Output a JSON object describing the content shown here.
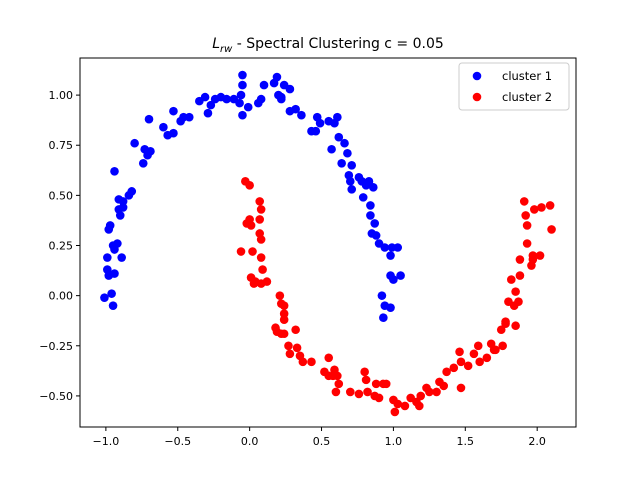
{
  "chart_data": {
    "type": "scatter",
    "title": {
      "math_symbol": "L",
      "math_subscript": "rw",
      "rest": " - Spectral Clustering c = 0.05"
    },
    "xlim": [
      -1.18,
      2.27
    ],
    "ylim": [
      -0.655,
      1.185
    ],
    "xticks": [
      -1.0,
      -0.5,
      0.0,
      0.5,
      1.0,
      1.5,
      2.0
    ],
    "xtick_labels": [
      "−1.0",
      "−0.5",
      "0.0",
      "0.5",
      "1.0",
      "1.5",
      "2.0"
    ],
    "yticks": [
      -0.5,
      -0.25,
      0.0,
      0.25,
      0.5,
      0.75,
      1.0
    ],
    "ytick_labels": [
      "−0.50",
      "−0.25",
      "0.00",
      "0.25",
      "0.50",
      "0.75",
      "1.00"
    ],
    "grid": false,
    "legend_position": "top-right",
    "series": [
      {
        "name": "cluster 1",
        "color": "#0000ff",
        "points": [
          [
            -1.01,
            -0.01
          ],
          [
            -0.96,
            0.01
          ],
          [
            -0.95,
            -0.05
          ],
          [
            -0.98,
            0.1
          ],
          [
            -0.99,
            0.13
          ],
          [
            -0.99,
            0.19
          ],
          [
            -0.94,
            0.11
          ],
          [
            -0.89,
            0.19
          ],
          [
            -0.95,
            0.25
          ],
          [
            -0.92,
            0.26
          ],
          [
            -0.94,
            0.23
          ],
          [
            -0.98,
            0.33
          ],
          [
            -0.97,
            0.35
          ],
          [
            -0.9,
            0.4
          ],
          [
            -0.91,
            0.43
          ],
          [
            -0.88,
            0.44
          ],
          [
            -0.88,
            0.47
          ],
          [
            -0.91,
            0.48
          ],
          [
            -0.84,
            0.5
          ],
          [
            -0.82,
            0.52
          ],
          [
            -0.94,
            0.62
          ],
          [
            -0.74,
            0.66
          ],
          [
            -0.71,
            0.7
          ],
          [
            -0.73,
            0.73
          ],
          [
            -0.69,
            0.72
          ],
          [
            -0.8,
            0.76
          ],
          [
            -0.7,
            0.88
          ],
          [
            -0.6,
            0.84
          ],
          [
            -0.57,
            0.8
          ],
          [
            -0.53,
            0.81
          ],
          [
            -0.53,
            0.92
          ],
          [
            -0.48,
            0.87
          ],
          [
            -0.46,
            0.89
          ],
          [
            -0.42,
            0.89
          ],
          [
            -0.35,
            0.97
          ],
          [
            -0.31,
            0.99
          ],
          [
            -0.29,
            0.91
          ],
          [
            -0.27,
            0.95
          ],
          [
            -0.24,
            0.98
          ],
          [
            -0.2,
            0.99
          ],
          [
            -0.16,
            0.98
          ],
          [
            -0.11,
            0.98
          ],
          [
            -0.07,
            0.96
          ],
          [
            -0.05,
            1.1
          ],
          [
            -0.05,
            1.05
          ],
          [
            -0.05,
            0.9
          ],
          [
            -0.06,
            1.0
          ],
          [
            -0.01,
            0.94
          ],
          [
            0.06,
            0.96
          ],
          [
            0.08,
            0.98
          ],
          [
            0.1,
            1.05
          ],
          [
            0.17,
            1.06
          ],
          [
            0.19,
            1.09
          ],
          [
            0.2,
            1.0
          ],
          [
            0.22,
            0.99
          ],
          [
            0.22,
            0.98
          ],
          [
            0.24,
            1.05
          ],
          [
            0.28,
            1.03
          ],
          [
            0.28,
            0.92
          ],
          [
            0.32,
            0.93
          ],
          [
            0.36,
            0.9
          ],
          [
            0.43,
            0.82
          ],
          [
            0.46,
            0.82
          ],
          [
            0.47,
            0.89
          ],
          [
            0.49,
            0.86
          ],
          [
            0.55,
            0.87
          ],
          [
            0.59,
            0.86
          ],
          [
            0.61,
            0.89
          ],
          [
            0.57,
            0.73
          ],
          [
            0.62,
            0.79
          ],
          [
            0.66,
            0.76
          ],
          [
            0.64,
            0.66
          ],
          [
            0.68,
            0.71
          ],
          [
            0.69,
            0.6
          ],
          [
            0.7,
            0.57
          ],
          [
            0.71,
            0.65
          ],
          [
            0.71,
            0.53
          ],
          [
            0.76,
            0.59
          ],
          [
            0.78,
            0.57
          ],
          [
            0.79,
            0.49
          ],
          [
            0.81,
            0.55
          ],
          [
            0.83,
            0.57
          ],
          [
            0.84,
            0.45
          ],
          [
            0.84,
            0.4
          ],
          [
            0.86,
            0.54
          ],
          [
            0.85,
            0.31
          ],
          [
            0.87,
            0.36
          ],
          [
            0.88,
            0.3
          ],
          [
            0.9,
            0.26
          ],
          [
            0.94,
            0.24
          ],
          [
            0.98,
            0.2
          ],
          [
            0.99,
            0.24
          ],
          [
            1.03,
            0.24
          ],
          [
            0.98,
            0.1
          ],
          [
            1.0,
            0.08
          ],
          [
            1.05,
            0.1
          ],
          [
            0.92,
            0.0
          ],
          [
            0.94,
            -0.05
          ],
          [
            0.98,
            -0.06
          ],
          [
            0.93,
            -0.11
          ]
        ]
      },
      {
        "name": "cluster 2",
        "color": "#ff0000",
        "points": [
          [
            -0.03,
            0.57
          ],
          [
            0.0,
            0.55
          ],
          [
            0.07,
            0.47
          ],
          [
            0.08,
            0.43
          ],
          [
            -0.02,
            0.36
          ],
          [
            0.0,
            0.38
          ],
          [
            0.01,
            0.35
          ],
          [
            0.07,
            0.38
          ],
          [
            0.07,
            0.31
          ],
          [
            0.08,
            0.28
          ],
          [
            -0.06,
            0.22
          ],
          [
            0.02,
            0.22
          ],
          [
            0.08,
            0.19
          ],
          [
            0.09,
            0.13
          ],
          [
            0.01,
            0.09
          ],
          [
            0.04,
            0.07
          ],
          [
            0.03,
            0.06
          ],
          [
            0.12,
            0.07
          ],
          [
            0.08,
            0.06
          ],
          [
            0.21,
            0.0
          ],
          [
            0.22,
            -0.04
          ],
          [
            0.24,
            -0.05
          ],
          [
            0.24,
            -0.09
          ],
          [
            0.24,
            -0.12
          ],
          [
            0.18,
            -0.16
          ],
          [
            0.19,
            -0.18
          ],
          [
            0.22,
            -0.19
          ],
          [
            0.24,
            -0.19
          ],
          [
            0.32,
            -0.17
          ],
          [
            0.27,
            -0.25
          ],
          [
            0.33,
            -0.26
          ],
          [
            0.28,
            -0.29
          ],
          [
            0.35,
            -0.3
          ],
          [
            0.37,
            -0.33
          ],
          [
            0.43,
            -0.33
          ],
          [
            0.55,
            -0.31
          ],
          [
            0.52,
            -0.38
          ],
          [
            0.55,
            -0.4
          ],
          [
            0.58,
            -0.4
          ],
          [
            0.59,
            -0.37
          ],
          [
            0.61,
            -0.4
          ],
          [
            0.6,
            -0.48
          ],
          [
            0.62,
            -0.44
          ],
          [
            0.7,
            -0.48
          ],
          [
            0.76,
            -0.49
          ],
          [
            0.8,
            -0.38
          ],
          [
            0.81,
            -0.42
          ],
          [
            0.82,
            -0.48
          ],
          [
            0.88,
            -0.44
          ],
          [
            0.87,
            -0.5
          ],
          [
            0.9,
            -0.51
          ],
          [
            0.93,
            -0.44
          ],
          [
            0.95,
            -0.44
          ],
          [
            1.0,
            -0.52
          ],
          [
            1.01,
            -0.58
          ],
          [
            1.03,
            -0.54
          ],
          [
            1.08,
            -0.55
          ],
          [
            1.12,
            -0.51
          ],
          [
            1.16,
            -0.53
          ],
          [
            1.18,
            -0.55
          ],
          [
            1.19,
            -0.5
          ],
          [
            1.25,
            -0.48
          ],
          [
            1.23,
            -0.46
          ],
          [
            1.3,
            -0.48
          ],
          [
            1.32,
            -0.43
          ],
          [
            1.35,
            -0.45
          ],
          [
            1.37,
            -0.38
          ],
          [
            1.42,
            -0.36
          ],
          [
            1.46,
            -0.28
          ],
          [
            1.47,
            -0.33
          ],
          [
            1.47,
            -0.46
          ],
          [
            1.52,
            -0.35
          ],
          [
            1.56,
            -0.29
          ],
          [
            1.59,
            -0.25
          ],
          [
            1.6,
            -0.33
          ],
          [
            1.65,
            -0.31
          ],
          [
            1.68,
            -0.24
          ],
          [
            1.7,
            -0.27
          ],
          [
            1.71,
            -0.27
          ],
          [
            1.75,
            -0.17
          ],
          [
            1.76,
            -0.25
          ],
          [
            1.78,
            -0.14
          ],
          [
            1.78,
            -0.13
          ],
          [
            1.8,
            -0.03
          ],
          [
            1.82,
            0.08
          ],
          [
            1.84,
            -0.05
          ],
          [
            1.85,
            -0.15
          ],
          [
            1.85,
            0.02
          ],
          [
            1.87,
            -0.03
          ],
          [
            1.88,
            0.1
          ],
          [
            1.88,
            0.18
          ],
          [
            1.93,
            0.26
          ],
          [
            1.93,
            0.35
          ],
          [
            1.92,
            0.4
          ],
          [
            1.91,
            0.47
          ],
          [
            1.96,
            0.15
          ],
          [
            1.97,
            0.18
          ],
          [
            1.97,
            0.2
          ],
          [
            1.98,
            0.43
          ],
          [
            2.03,
            0.44
          ],
          [
            2.02,
            0.2
          ],
          [
            2.09,
            0.45
          ],
          [
            2.1,
            0.33
          ]
        ]
      }
    ]
  }
}
